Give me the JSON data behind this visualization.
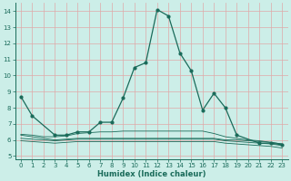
{
  "xlabel": "Humidex (Indice chaleur)",
  "bg_color": "#cceee8",
  "grid_color": "#e0a8a8",
  "line_color": "#1a6b5a",
  "xlim": [
    -0.5,
    23.5
  ],
  "ylim": [
    4.8,
    14.5
  ],
  "xticks": [
    0,
    1,
    2,
    3,
    4,
    5,
    6,
    7,
    8,
    9,
    10,
    11,
    12,
    13,
    14,
    15,
    16,
    17,
    18,
    19,
    20,
    21,
    22,
    23
  ],
  "yticks": [
    5,
    6,
    7,
    8,
    9,
    10,
    11,
    12,
    13,
    14
  ],
  "main_x": [
    0,
    1,
    3,
    4,
    5,
    6,
    7,
    8,
    9,
    10,
    11,
    12,
    13,
    14,
    15,
    16,
    17,
    18,
    19,
    21,
    22,
    23
  ],
  "main_y": [
    8.7,
    7.5,
    6.3,
    6.3,
    6.5,
    6.5,
    7.1,
    7.1,
    8.6,
    10.5,
    10.8,
    14.1,
    13.7,
    11.4,
    10.3,
    7.85,
    8.9,
    8.0,
    6.3,
    5.8,
    5.8,
    5.7
  ],
  "flat1_x": [
    0,
    1,
    2,
    3,
    4,
    5,
    6,
    7,
    8,
    9,
    10,
    11,
    12,
    13,
    14,
    15,
    16,
    17,
    18,
    19,
    20,
    21,
    22,
    23
  ],
  "flat1_y": [
    6.3,
    6.2,
    6.1,
    6.0,
    6.05,
    6.1,
    6.1,
    6.1,
    6.1,
    6.1,
    6.1,
    6.1,
    6.1,
    6.1,
    6.1,
    6.1,
    6.1,
    6.1,
    6.0,
    6.0,
    5.95,
    5.9,
    5.85,
    5.75
  ],
  "flat2_x": [
    0,
    1,
    2,
    3,
    4,
    5,
    6,
    7,
    8,
    9,
    10,
    11,
    12,
    13,
    14,
    15,
    16,
    17,
    18,
    19,
    20,
    21,
    22,
    23
  ],
  "flat2_y": [
    6.1,
    6.05,
    6.0,
    5.95,
    6.0,
    6.05,
    6.05,
    6.05,
    6.05,
    6.05,
    6.05,
    6.05,
    6.05,
    6.05,
    6.05,
    6.05,
    6.05,
    6.05,
    5.95,
    5.9,
    5.85,
    5.8,
    5.75,
    5.65
  ],
  "flat3_x": [
    0,
    1,
    2,
    3,
    4,
    5,
    6,
    7,
    8,
    9,
    10,
    11,
    12,
    13,
    14,
    15,
    16,
    17,
    18,
    19,
    20,
    21,
    22,
    23
  ],
  "flat3_y": [
    5.95,
    5.9,
    5.85,
    5.8,
    5.85,
    5.9,
    5.9,
    5.9,
    5.9,
    5.9,
    5.9,
    5.9,
    5.9,
    5.9,
    5.9,
    5.9,
    5.9,
    5.9,
    5.8,
    5.75,
    5.7,
    5.65,
    5.6,
    5.5
  ],
  "trend_x": [
    0,
    1,
    2,
    3,
    4,
    5,
    6,
    7,
    8,
    9,
    10,
    11,
    12,
    13,
    14,
    15,
    16,
    17,
    18,
    19,
    20,
    21,
    22,
    23
  ],
  "trend_y": [
    6.35,
    6.3,
    6.2,
    6.2,
    6.25,
    6.4,
    6.45,
    6.5,
    6.5,
    6.55,
    6.55,
    6.55,
    6.55,
    6.55,
    6.55,
    6.55,
    6.55,
    6.4,
    6.2,
    6.1,
    6.0,
    5.95,
    5.85,
    5.75
  ]
}
